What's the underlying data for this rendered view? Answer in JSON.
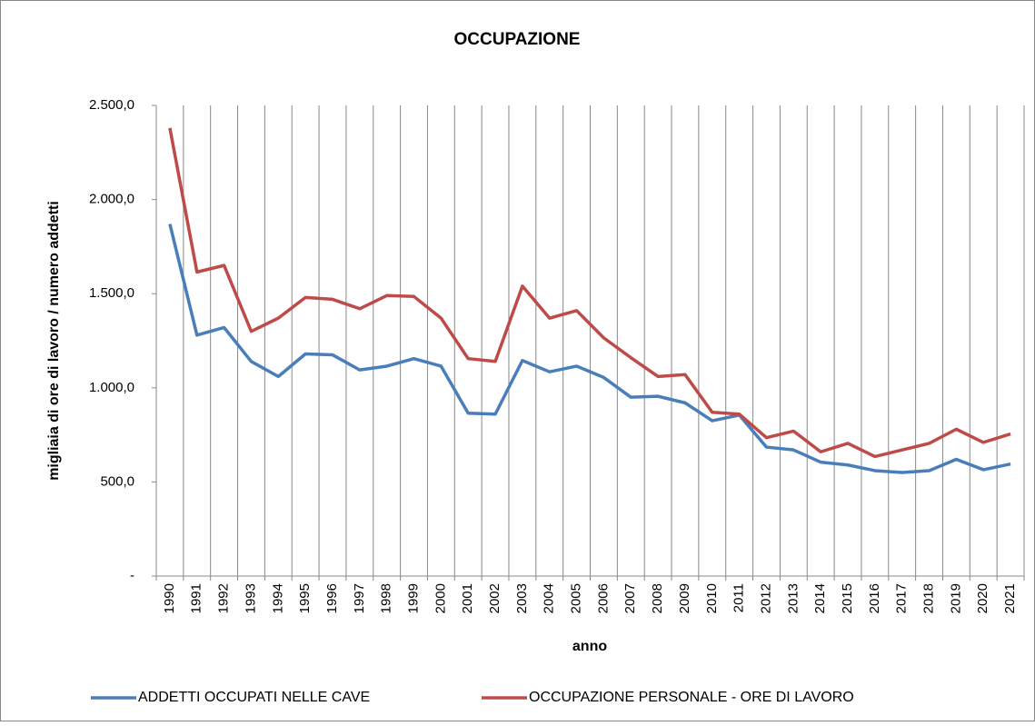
{
  "chart_data": {
    "type": "line",
    "title": "OCCUPAZIONE",
    "x_label": "anno",
    "y_label": "migliaia di ore di lavoro / numero addetti",
    "categories": [
      "1990",
      "1991",
      "1992",
      "1993",
      "1994",
      "1995",
      "1996",
      "1997",
      "1998",
      "1999",
      "2000",
      "2001",
      "2002",
      "2003",
      "2004",
      "2005",
      "2006",
      "2007",
      "2008",
      "2009",
      "2010",
      "2011",
      "2012",
      "2013",
      "2014",
      "2015",
      "2016",
      "2017",
      "2018",
      "2019",
      "2020",
      "2021"
    ],
    "series": [
      {
        "name": "ADDETTI OCCUPATI NELLE CAVE",
        "color": "#4a7ebb",
        "values": [
          1870,
          1280,
          1320,
          1140,
          1060,
          1180,
          1175,
          1095,
          1115,
          1155,
          1115,
          865,
          860,
          1145,
          1085,
          1115,
          1055,
          950,
          955,
          920,
          825,
          855,
          685,
          670,
          605,
          590,
          560,
          550,
          560,
          620,
          565,
          595
        ]
      },
      {
        "name": "OCCUPAZIONE PERSONALE -  ORE DI LAVORO",
        "color": "#be4b48",
        "values": [
          2380,
          1615,
          1650,
          1300,
          1370,
          1480,
          1470,
          1420,
          1490,
          1485,
          1370,
          1155,
          1140,
          1540,
          1370,
          1410,
          1265,
          1160,
          1060,
          1070,
          870,
          860,
          735,
          770,
          660,
          705,
          635,
          670,
          705,
          780,
          710,
          755
        ]
      }
    ],
    "ylim": [
      0,
      2500
    ],
    "yticks": [
      {
        "value": 0,
        "label": "-"
      },
      {
        "value": 500,
        "label": "500,0"
      },
      {
        "value": 1000,
        "label": "1.000,0"
      },
      {
        "value": 1500,
        "label": "1.500,0"
      },
      {
        "value": 2000,
        "label": "2.000,0"
      },
      {
        "value": 2500,
        "label": "2.500,0"
      }
    ],
    "grid": "x",
    "legend": "bottom"
  }
}
